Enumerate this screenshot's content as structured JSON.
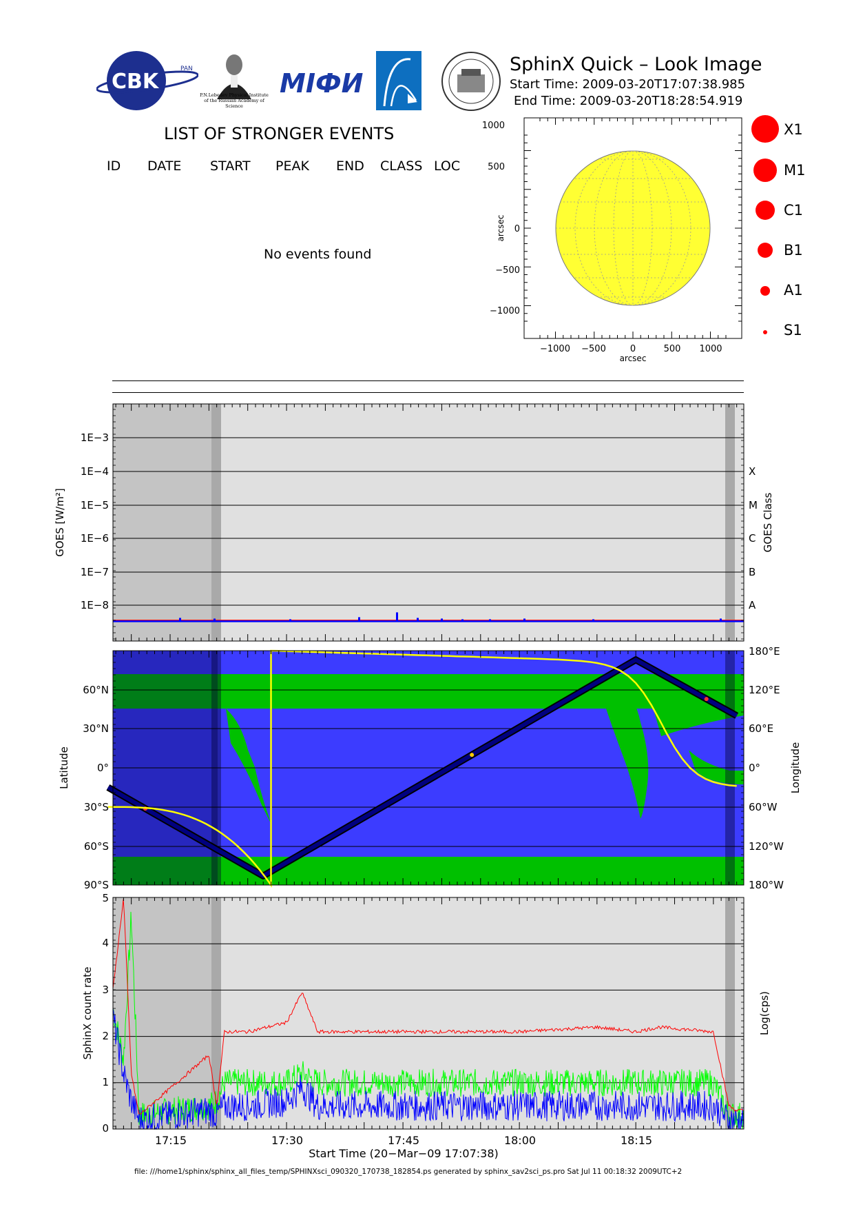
{
  "header": {
    "title": "SphinX Quick – Look Image",
    "start_time": "Start Time: 2009-03-20T17:07:38.985",
    "end_time": "End Time: 2009-03-20T18:28:54.919",
    "logos": {
      "cbk": "CBK",
      "cbk_sub": "PAN",
      "lebedev": "P.N.Lebedev Physical Institute of the Russian Academy of Science",
      "miph": "MIФИ"
    }
  },
  "events": {
    "title": "LIST OF STRONGER EVENTS",
    "columns": [
      "ID",
      "DATE",
      "START",
      "PEAK",
      "END",
      "CLASS",
      "LOC"
    ],
    "empty_text": "No events found"
  },
  "sun_map": {
    "xlabel": "arcsec",
    "ylabel": "arcsec",
    "x_ticks": [
      "−1000",
      "−500",
      "0",
      "500",
      "1000"
    ],
    "y_ticks": [
      "1000",
      "500",
      "0",
      "−500",
      "−1000"
    ],
    "disk_color": "#ffff33"
  },
  "size_legend": [
    {
      "label": "X1"
    },
    {
      "label": "M1"
    },
    {
      "label": "C1"
    },
    {
      "label": "B1"
    },
    {
      "label": "A1"
    },
    {
      "label": "S1"
    }
  ],
  "goes_panel": {
    "ylabel": "GOES [W/m²]",
    "right_label": "GOES Class",
    "y_ticks": [
      "1E−3",
      "1E−4",
      "1E−5",
      "1E−6",
      "1E−7",
      "1E−8"
    ],
    "classes": [
      "X",
      "M",
      "C",
      "B",
      "A"
    ]
  },
  "orbit_panel": {
    "ylabel": "Latitude",
    "right_label": "Longitude",
    "lat_ticks": [
      "60°N",
      "30°N",
      "0°",
      "30°S",
      "60°S",
      "90°S"
    ],
    "lon_ticks": [
      "180°E",
      "120°E",
      "60°E",
      "0°",
      "60°W",
      "120°W",
      "180°W"
    ]
  },
  "count_panel": {
    "ylabel": "SphinX count rate",
    "right_label": "Log(cps)",
    "y_ticks": [
      "0",
      "1",
      "2",
      "3",
      "4",
      "5"
    ],
    "x_ticks": [
      "17:15",
      "17:30",
      "17:45",
      "18:00",
      "18:15"
    ],
    "xlabel": "Start Time (20−Mar−09 17:07:38)"
  },
  "chart_data": [
    {
      "type": "line",
      "panel": "GOES",
      "y_scale": "log",
      "ylim": [
        "1E-9",
        "1E-2"
      ],
      "series": [
        {
          "color": "#ff0000",
          "x_minutes": [
            0,
            80
          ],
          "values": [
            "4E-9",
            "4E-9"
          ]
        },
        {
          "color": "#0000ff",
          "x_minutes": [
            0,
            80
          ],
          "values": [
            "4E-9",
            "4E-9"
          ]
        }
      ],
      "shaded_color": "#e0e0e0",
      "night_color": "#c4c4c4"
    },
    {
      "type": "line",
      "panel": "Orbit",
      "ylim": [
        -90,
        90
      ],
      "series": [
        {
          "color": "#000080",
          "x": [
            "17:07",
            "17:27",
            "18:15",
            "18:28"
          ],
          "values": [
            -15,
            -83,
            83,
            40
          ]
        },
        {
          "color": "#ffff00",
          "x": [
            "17:07",
            "17:28",
            "17:28",
            "18:28"
          ],
          "values": [
            -30,
            -90,
            90,
            -15
          ]
        }
      ],
      "land_color": "#00c000",
      "sea_color": "#3c3cff"
    },
    {
      "type": "line",
      "panel": "Count rate",
      "ylabel": "SphinX count rate",
      "right_label": "Log(cps)",
      "ylim": [
        0,
        5
      ],
      "x": [
        "17:07:38",
        "17:09",
        "17:10",
        "17:11",
        "17:20",
        "17:21",
        "17:22",
        "17:25",
        "17:30",
        "17:32",
        "17:34",
        "17:45",
        "18:00",
        "18:10",
        "18:15",
        "18:18",
        "18:25",
        "18:27",
        "18:28"
      ],
      "series": [
        {
          "color": "#ff0000",
          "values": [
            3.0,
            5.0,
            1.2,
            0.3,
            1.6,
            0.5,
            2.1,
            2.1,
            2.3,
            2.95,
            2.1,
            2.1,
            2.1,
            2.2,
            2.1,
            2.2,
            2.1,
            0.5,
            0.4
          ]
        },
        {
          "color": "#00ff00",
          "values": [
            2.6,
            1.5,
            4.6,
            0.3,
            0.5,
            0.6,
            1.0,
            1.0,
            1.0,
            1.2,
            1.0,
            1.0,
            1.0,
            1.0,
            1.0,
            1.0,
            1.0,
            0.3,
            0.3
          ]
        },
        {
          "color": "#0000ff",
          "values": [
            2.4,
            1.2,
            0.6,
            0.2,
            0.4,
            0.3,
            0.5,
            0.5,
            0.6,
            0.9,
            0.5,
            0.5,
            0.5,
            0.5,
            0.5,
            0.5,
            0.5,
            0.2,
            0.2
          ]
        }
      ]
    }
  ],
  "footer": "file: ///home1/sphinx/sphinx_all_files_temp/SPHINXsci_090320_170738_182854.ps generated by sphinx_sav2sci_ps.pro Sat Jul 11 00:18:32 2009UTC+2"
}
